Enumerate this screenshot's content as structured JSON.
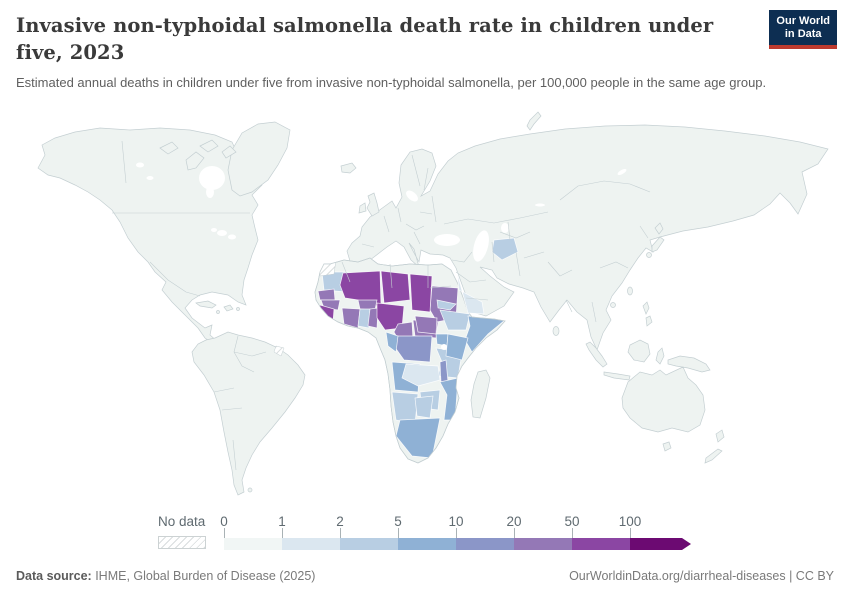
{
  "header": {
    "title": "Invasive non-typhoidal salmonella death rate in children under five, 2023",
    "subtitle": "Estimated annual deaths in children under five from invasive non-typhoidal salmonella, per 100,000 people in the same age group.",
    "logo": {
      "line1": "Our World",
      "line2": "in Data",
      "bg": "#0d2e52",
      "accent": "#bd3a2e"
    }
  },
  "legend": {
    "no_data_label": "No data",
    "ticks": [
      "0",
      "1",
      "2",
      "5",
      "10",
      "20",
      "50",
      "100"
    ],
    "colors": [
      "#f1f6f5",
      "#dbe7f0",
      "#b8cee3",
      "#8fb1d5",
      "#8b96c8",
      "#9478b6",
      "#8b46a3",
      "#6c0a72"
    ],
    "hatch_color": "#d8dcdd"
  },
  "map": {
    "ocean_color": "#ffffff",
    "land_color": "#eef3f1",
    "border_color": "#c4cfd2"
  },
  "footer": {
    "source_label": "Data source:",
    "source_text": " IHME, Global Burden of Disease (2025)",
    "link_text": "OurWorldinData.org/diarrheal-diseases | CC BY"
  },
  "chart_data": {
    "type": "heatmap",
    "subtype": "world-choropleth",
    "title": "Invasive non-typhoidal salmonella death rate in children under five, 2023",
    "unit": "deaths per 100,000 people in the same age group",
    "year": 2023,
    "legend_position": "bottom",
    "bins": [
      {
        "label": "0-1",
        "min": 0,
        "max": 1,
        "color": "#f1f6f5"
      },
      {
        "label": "1-2",
        "min": 1,
        "max": 2,
        "color": "#dbe7f0"
      },
      {
        "label": "2-5",
        "min": 2,
        "max": 5,
        "color": "#b8cee3"
      },
      {
        "label": "5-10",
        "min": 5,
        "max": 10,
        "color": "#8fb1d5"
      },
      {
        "label": "10-20",
        "min": 10,
        "max": 20,
        "color": "#8b96c8"
      },
      {
        "label": "20-50",
        "min": 20,
        "max": 50,
        "color": "#9478b6"
      },
      {
        "label": "50-100",
        "min": 50,
        "max": 100,
        "color": "#8b46a3"
      },
      {
        "label": "100+",
        "min": 100,
        "max": null,
        "color": "#6c0a72"
      }
    ],
    "default_bin": 0,
    "default_bin_note": "Americas, Europe, most of Asia, Oceania, North Africa shown in the 0-1 bin",
    "no_data_regions": [
      "Western Sahara",
      "French Guiana"
    ],
    "region_bins": {
      "mali": 6,
      "niger": 6,
      "chad": 6,
      "nigeria": 6,
      "sierra-leone": 6,
      "senegal": 5,
      "guinea": 5,
      "burkina-faso": 5,
      "cote-divoire": 5,
      "togo-benin": 5,
      "cameroon": 5,
      "central-african-republic": 5,
      "sudan": 5,
      "south-sudan": 5,
      "drc": 4,
      "malawi": 4,
      "somalia": 3,
      "kenya": 3,
      "uganda": 3,
      "congo": 3,
      "angola": 3,
      "mozambique": 3,
      "south-africa": 3,
      "mauritania": 2,
      "ethiopia": 2,
      "eritrea": 2,
      "tanzania": 2,
      "zimbabwe": 2,
      "namibia": 2,
      "botswana": 2,
      "afghanistan": 2,
      "ghana": 2,
      "zambia": 1,
      "yemen": 1
    }
  }
}
